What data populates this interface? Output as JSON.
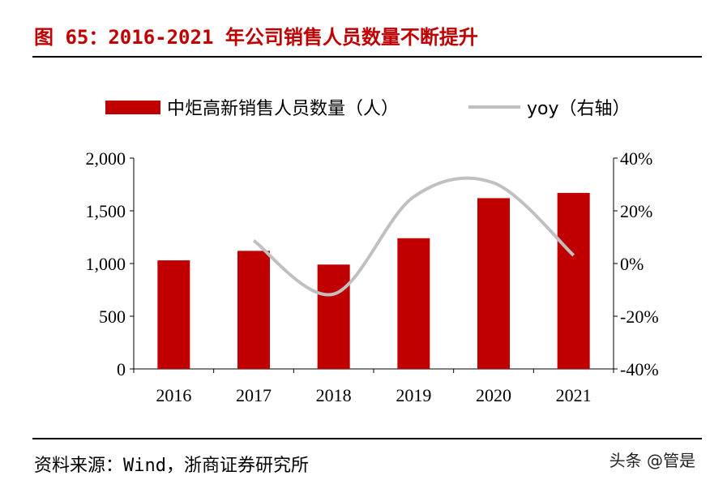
{
  "title": "图 65：2016-2021 年公司销售人员数量不断提升",
  "source": "资料来源：Wind，浙商证券研究所",
  "watermark": "头条 @管是",
  "chart_data": {
    "type": "bar+line",
    "categories": [
      "2016",
      "2017",
      "2018",
      "2019",
      "2020",
      "2021"
    ],
    "series": [
      {
        "name": "中炬高新销售人员数量（人）",
        "type": "bar",
        "axis": "left",
        "color": "#c00000",
        "values": [
          1030,
          1120,
          990,
          1240,
          1620,
          1670
        ]
      },
      {
        "name": "yoy（右轴）",
        "type": "line",
        "axis": "right",
        "color": "#c0c0c0",
        "values": [
          null,
          8.7,
          -11.6,
          25.3,
          30.6,
          3.1
        ]
      }
    ],
    "left_axis": {
      "ylim": [
        0,
        2000
      ],
      "ticks": [
        "0",
        "500",
        "1,000",
        "1,500",
        "2,000"
      ]
    },
    "right_axis": {
      "ylim": [
        -40,
        40
      ],
      "ticks": [
        "-40%",
        "-20%",
        "0%",
        "20%",
        "40%"
      ]
    },
    "legend_placement": "top",
    "grid": false
  }
}
